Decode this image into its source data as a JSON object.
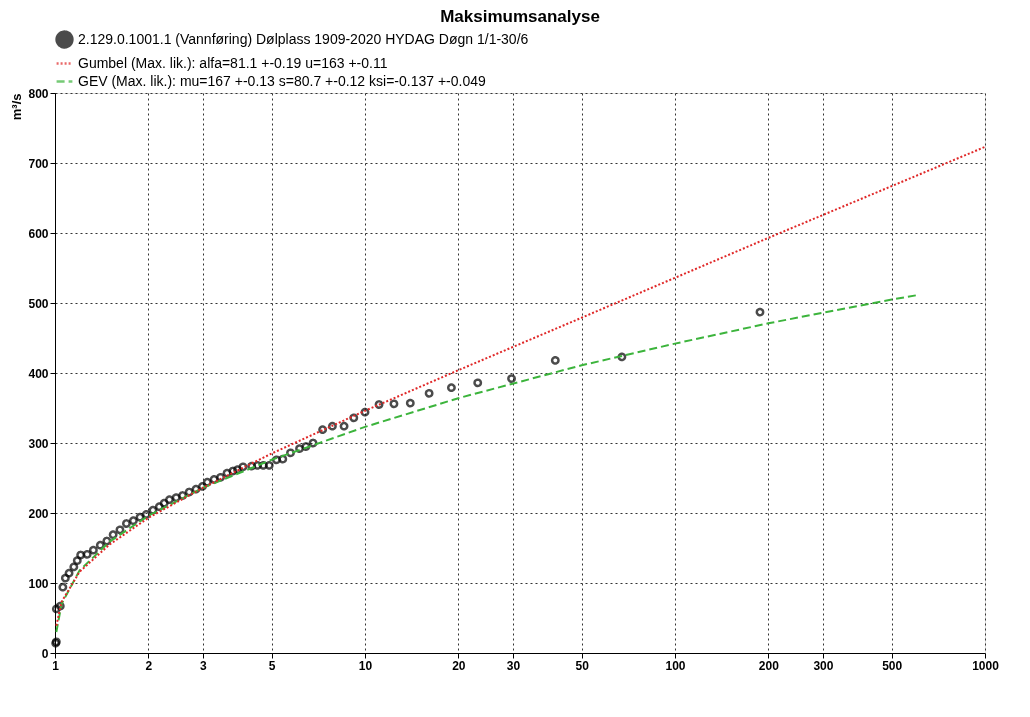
{
  "chart_data": {
    "type": "scatter",
    "title": "Maksimumsanalyse",
    "ylabel": "m³/s",
    "log": "x",
    "xlim": [
      1,
      1000
    ],
    "xticks": [
      1,
      2,
      3,
      5,
      10,
      20,
      30,
      50,
      100,
      200,
      300,
      500,
      1000
    ],
    "ylim": [
      0,
      800
    ],
    "yticks": [
      0,
      100,
      200,
      300,
      400,
      500,
      600,
      700,
      800
    ],
    "grid": true,
    "legend": "top left",
    "series": [
      {
        "name": "2.129.0.1001.1 (Vannføring) Dølplass  1909-2020 HYDAG Døgn 1/1-30/6",
        "type": "scatter",
        "marker": "circle",
        "color": "#000000",
        "x": [
          1.005,
          1.01,
          1.01,
          1.04,
          1.06,
          1.08,
          1.11,
          1.15,
          1.18,
          1.21,
          1.27,
          1.33,
          1.4,
          1.47,
          1.54,
          1.62,
          1.7,
          1.79,
          1.88,
          1.97,
          2.07,
          2.17,
          2.25,
          2.34,
          2.46,
          2.58,
          2.71,
          2.85,
          2.99,
          3.1,
          3.26,
          3.42,
          3.59,
          3.75,
          3.88,
          4.04,
          4.31,
          4.5,
          4.7,
          4.91,
          5.18,
          5.43,
          5.75,
          6.15,
          6.45,
          6.8,
          7.3,
          7.85,
          8.56,
          9.2,
          10.0,
          11.1,
          12.4,
          14.0,
          16.1,
          19.0,
          23.1,
          29.7,
          41.1,
          67.4,
          188
        ],
        "values": [
          14,
          16,
          63,
          67,
          94,
          107,
          114,
          123,
          132,
          140,
          141,
          147,
          154,
          160,
          169,
          176,
          185,
          189,
          194,
          198,
          204,
          209,
          214,
          219,
          222,
          225,
          230,
          234,
          238,
          244,
          248,
          251,
          257,
          260,
          262,
          266,
          267,
          268,
          268,
          268,
          276,
          277,
          286,
          292,
          295,
          300,
          319,
          324,
          324,
          336,
          344,
          355,
          356,
          357,
          371,
          379,
          386,
          392,
          418,
          423,
          487
        ]
      },
      {
        "name": "Gumbel (Max. lik.): alfa=81.1   +-0.19   u=163    +-0.11",
        "type": "line",
        "line_style": "dotted",
        "color": "#e02828",
        "x": [
          1.01,
          1.05,
          1.2,
          1.5,
          2,
          3,
          5,
          10,
          20,
          50,
          100,
          200,
          500,
          1000
        ],
        "values": [
          39,
          73,
          116,
          155,
          193,
          236,
          285,
          346,
          404,
          479,
          536,
          593,
          667,
          723
        ]
      },
      {
        "name": "GEV (Max. lik.): mu=167    +-0.13   s=80.7   +-0.12   ksi=-0.137 +-0.049",
        "type": "line",
        "line_style": "dashed",
        "color": "#3cb43c",
        "x": [
          1.01,
          1.05,
          1.2,
          1.5,
          2,
          3,
          5,
          10,
          20,
          50,
          100,
          200,
          500,
          600
        ],
        "values": [
          30,
          70,
          118,
          159,
          196,
          236,
          276,
          323,
          364,
          411,
          442,
          471,
          505,
          511
        ]
      }
    ]
  }
}
